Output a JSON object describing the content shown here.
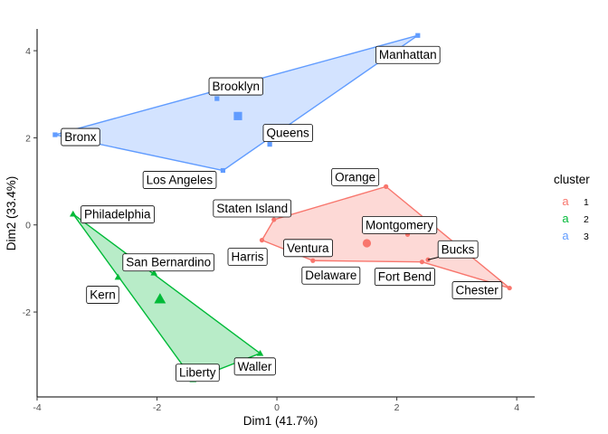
{
  "chart_data": {
    "type": "scatter",
    "title": "",
    "xlabel": "Dim1 (41.7%)",
    "ylabel": "Dim2 (33.4%)",
    "xlim": [
      -4.0,
      4.3
    ],
    "ylim": [
      -3.95,
      4.5
    ],
    "x_ticks": [
      -4,
      -2,
      0,
      2,
      4
    ],
    "y_ticks": [
      -2,
      0,
      2,
      4
    ],
    "grid": false,
    "legend_title": "cluster",
    "legend_position": "right",
    "series": [
      {
        "name": "1",
        "color": "#F8766D",
        "marker": "circle",
        "centroid": [
          1.5,
          -0.42
        ],
        "hull": [
          "Staten Island",
          "Orange",
          "Chester",
          "Fort Bend",
          "Delaware",
          "Harris"
        ],
        "points": [
          {
            "label": "Staten Island",
            "x": -0.05,
            "y": 0.12
          },
          {
            "label": "Orange",
            "x": 1.82,
            "y": 0.88
          },
          {
            "label": "Montgomery",
            "x": 2.18,
            "y": -0.22
          },
          {
            "label": "Ventura",
            "x": 0.2,
            "y": -0.52
          },
          {
            "label": "Harris",
            "x": -0.25,
            "y": -0.35
          },
          {
            "label": "Delaware",
            "x": 0.6,
            "y": -0.82
          },
          {
            "label": "Fort Bend",
            "x": 2.42,
            "y": -0.85
          },
          {
            "label": "Bucks",
            "x": 2.52,
            "y": -0.8
          },
          {
            "label": "Chester",
            "x": 3.88,
            "y": -1.45
          }
        ]
      },
      {
        "name": "2",
        "color": "#00BA38",
        "marker": "triangle",
        "centroid": [
          -1.95,
          -1.7
        ],
        "hull": [
          "Philadelphia",
          "Waller",
          "Liberty"
        ],
        "points": [
          {
            "label": "Philadelphia",
            "x": -3.4,
            "y": 0.25
          },
          {
            "label": "San Bernardino",
            "x": -2.05,
            "y": -1.1
          },
          {
            "label": "Kern",
            "x": -2.65,
            "y": -1.2
          },
          {
            "label": "Liberty",
            "x": -1.4,
            "y": -3.55
          },
          {
            "label": "Waller",
            "x": -0.28,
            "y": -2.95
          }
        ]
      },
      {
        "name": "3",
        "color": "#619CFF",
        "marker": "square",
        "centroid": [
          -0.65,
          2.5
        ],
        "hull": [
          "Bronx",
          "Manhattan",
          "Los Angeles"
        ],
        "points": [
          {
            "label": "Manhattan",
            "x": 2.35,
            "y": 4.35
          },
          {
            "label": "Brooklyn",
            "x": -1.0,
            "y": 2.9
          },
          {
            "label": "Bronx",
            "x": -3.7,
            "y": 2.07
          },
          {
            "label": "Queens",
            "x": -0.12,
            "y": 1.85
          },
          {
            "label": "Los Angeles",
            "x": -0.9,
            "y": 1.25
          }
        ]
      }
    ]
  }
}
